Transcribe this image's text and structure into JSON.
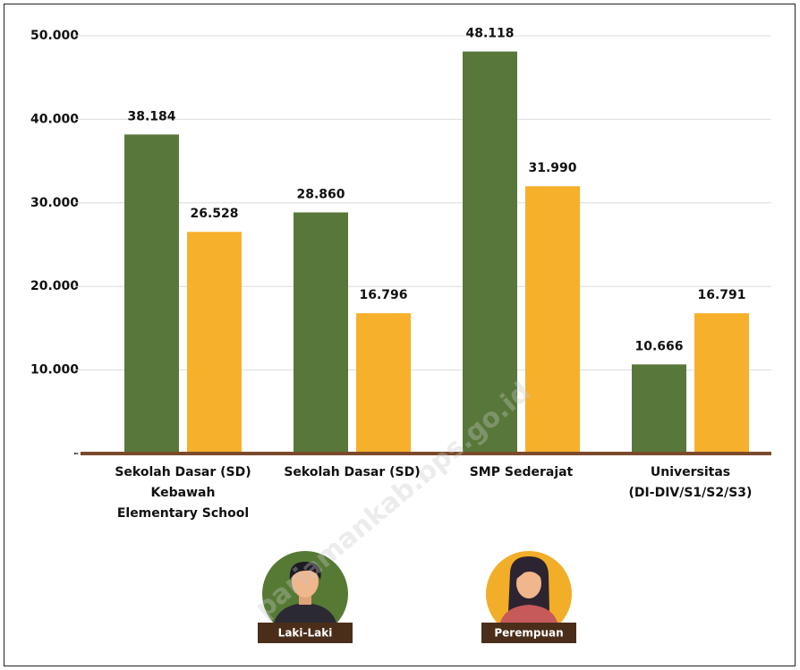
{
  "chart_data": {
    "type": "bar",
    "categories": [
      "Sekolah Dasar (SD)\nKebawah\nElementary School",
      "Sekolah Dasar (SD)",
      "SMP Sederajat",
      "Universitas\n(DI-DIV/S1/S2/S3)"
    ],
    "series": [
      {
        "name": "Laki-Laki",
        "color": "#58773a",
        "values": [
          38184,
          28860,
          48118,
          10666
        ],
        "value_labels": [
          "38.184",
          "28.860",
          "48.118",
          "10.666"
        ]
      },
      {
        "name": "Perempuan",
        "color": "#f7b02b",
        "values": [
          26528,
          16796,
          31990,
          16791
        ],
        "value_labels": [
          "26.528",
          "16.796",
          "31.990",
          "16.791"
        ]
      }
    ],
    "ylim": [
      0,
      50000
    ],
    "yticks": [
      {
        "value": 0,
        "label": "-"
      },
      {
        "value": 10000,
        "label": "10.000"
      },
      {
        "value": 20000,
        "label": "20.000"
      },
      {
        "value": 30000,
        "label": "30.000"
      },
      {
        "value": 40000,
        "label": "40.000"
      },
      {
        "value": 50000,
        "label": "50.000"
      }
    ],
    "grid": true,
    "watermark": "pariamankab.bps.go.id"
  }
}
